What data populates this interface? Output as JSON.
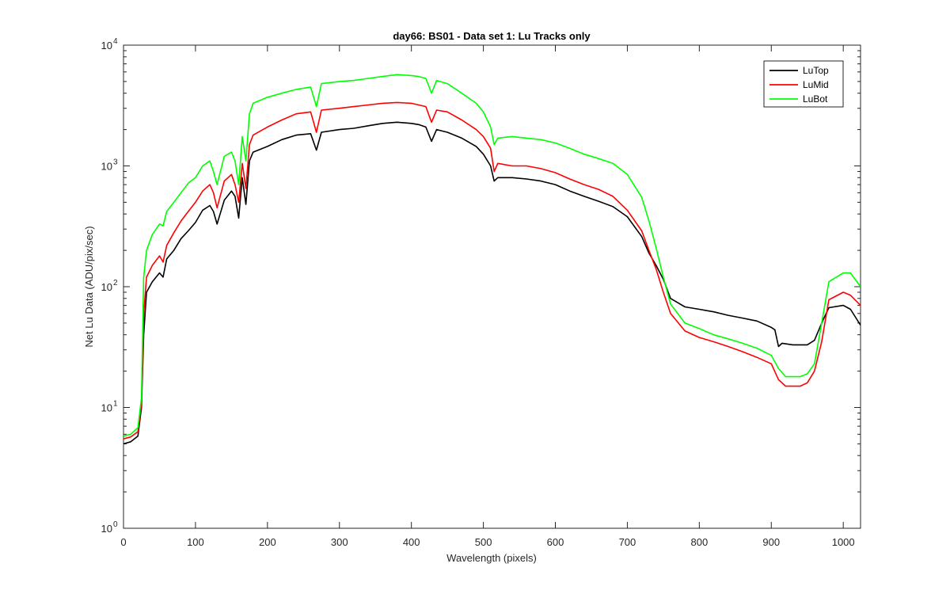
{
  "chart_data": {
    "type": "line",
    "title": "day66: BS01 - Data set 1: Lu Tracks only",
    "xlabel": "Wavelength (pixels)",
    "ylabel": "Net Lu Data (ADU/pix/sec)",
    "xlim": [
      0,
      1024
    ],
    "ylim": [
      1,
      10000
    ],
    "yscale": "log",
    "xticks": [
      0,
      100,
      200,
      300,
      400,
      500,
      600,
      700,
      800,
      900,
      1000
    ],
    "xtick_labels": [
      "0",
      "100",
      "200",
      "300",
      "400",
      "500",
      "600",
      "700",
      "800",
      "900",
      "1000"
    ],
    "yticks": [
      1,
      10,
      100,
      1000,
      10000
    ],
    "ytick_base": "10",
    "ytick_exponents": [
      "0",
      "1",
      "2",
      "3",
      "4"
    ],
    "grid": false,
    "legend_position": "top-right",
    "series": [
      {
        "name": "LuTop",
        "color": "#000000",
        "points": [
          [
            0,
            5
          ],
          [
            10,
            5.2
          ],
          [
            20,
            5.8
          ],
          [
            25,
            10
          ],
          [
            28,
            40
          ],
          [
            32,
            90
          ],
          [
            40,
            110
          ],
          [
            50,
            130
          ],
          [
            55,
            120
          ],
          [
            60,
            170
          ],
          [
            70,
            200
          ],
          [
            80,
            250
          ],
          [
            90,
            290
          ],
          [
            100,
            340
          ],
          [
            110,
            430
          ],
          [
            120,
            470
          ],
          [
            125,
            420
          ],
          [
            130,
            330
          ],
          [
            140,
            520
          ],
          [
            150,
            620
          ],
          [
            155,
            560
          ],
          [
            160,
            370
          ],
          [
            165,
            800
          ],
          [
            170,
            480
          ],
          [
            175,
            1100
          ],
          [
            180,
            1300
          ],
          [
            200,
            1450
          ],
          [
            220,
            1650
          ],
          [
            240,
            1800
          ],
          [
            260,
            1850
          ],
          [
            268,
            1350
          ],
          [
            275,
            1900
          ],
          [
            300,
            2000
          ],
          [
            320,
            2050
          ],
          [
            340,
            2150
          ],
          [
            360,
            2250
          ],
          [
            380,
            2300
          ],
          [
            400,
            2250
          ],
          [
            410,
            2200
          ],
          [
            420,
            2100
          ],
          [
            428,
            1600
          ],
          [
            435,
            2000
          ],
          [
            450,
            1900
          ],
          [
            470,
            1700
          ],
          [
            490,
            1450
          ],
          [
            500,
            1250
          ],
          [
            510,
            1000
          ],
          [
            515,
            750
          ],
          [
            520,
            800
          ],
          [
            540,
            800
          ],
          [
            560,
            780
          ],
          [
            580,
            750
          ],
          [
            600,
            700
          ],
          [
            620,
            620
          ],
          [
            640,
            560
          ],
          [
            660,
            510
          ],
          [
            680,
            460
          ],
          [
            700,
            380
          ],
          [
            720,
            260
          ],
          [
            730,
            190
          ],
          [
            740,
            150
          ],
          [
            750,
            115
          ],
          [
            760,
            80
          ],
          [
            780,
            68
          ],
          [
            800,
            65
          ],
          [
            820,
            62
          ],
          [
            840,
            58
          ],
          [
            860,
            55
          ],
          [
            880,
            52
          ],
          [
            900,
            46
          ],
          [
            905,
            44
          ],
          [
            910,
            32
          ],
          [
            915,
            34
          ],
          [
            930,
            33
          ],
          [
            950,
            33
          ],
          [
            960,
            36
          ],
          [
            970,
            50
          ],
          [
            980,
            67
          ],
          [
            1000,
            70
          ],
          [
            1010,
            65
          ],
          [
            1024,
            48
          ]
        ]
      },
      {
        "name": "LuMid",
        "color": "#ff0000",
        "points": [
          [
            0,
            5.5
          ],
          [
            10,
            5.7
          ],
          [
            20,
            6.3
          ],
          [
            25,
            11
          ],
          [
            28,
            60
          ],
          [
            32,
            120
          ],
          [
            40,
            150
          ],
          [
            50,
            180
          ],
          [
            55,
            160
          ],
          [
            60,
            220
          ],
          [
            70,
            280
          ],
          [
            80,
            350
          ],
          [
            90,
            420
          ],
          [
            100,
            500
          ],
          [
            110,
            620
          ],
          [
            120,
            700
          ],
          [
            125,
            600
          ],
          [
            130,
            450
          ],
          [
            140,
            750
          ],
          [
            150,
            850
          ],
          [
            155,
            700
          ],
          [
            160,
            500
          ],
          [
            165,
            1050
          ],
          [
            170,
            650
          ],
          [
            175,
            1500
          ],
          [
            180,
            1800
          ],
          [
            200,
            2100
          ],
          [
            220,
            2400
          ],
          [
            240,
            2700
          ],
          [
            260,
            2800
          ],
          [
            268,
            1900
          ],
          [
            275,
            2900
          ],
          [
            300,
            3000
          ],
          [
            320,
            3100
          ],
          [
            340,
            3200
          ],
          [
            360,
            3300
          ],
          [
            380,
            3350
          ],
          [
            400,
            3300
          ],
          [
            410,
            3200
          ],
          [
            420,
            3100
          ],
          [
            428,
            2300
          ],
          [
            435,
            2900
          ],
          [
            450,
            2800
          ],
          [
            470,
            2400
          ],
          [
            490,
            2000
          ],
          [
            500,
            1750
          ],
          [
            510,
            1400
          ],
          [
            515,
            900
          ],
          [
            520,
            1050
          ],
          [
            540,
            1000
          ],
          [
            560,
            1000
          ],
          [
            580,
            950
          ],
          [
            600,
            880
          ],
          [
            620,
            780
          ],
          [
            640,
            700
          ],
          [
            660,
            640
          ],
          [
            680,
            560
          ],
          [
            700,
            430
          ],
          [
            720,
            290
          ],
          [
            730,
            200
          ],
          [
            740,
            140
          ],
          [
            750,
            90
          ],
          [
            760,
            60
          ],
          [
            780,
            43
          ],
          [
            800,
            38
          ],
          [
            820,
            35
          ],
          [
            840,
            32
          ],
          [
            860,
            29
          ],
          [
            880,
            26
          ],
          [
            900,
            23
          ],
          [
            910,
            17
          ],
          [
            920,
            15
          ],
          [
            940,
            15
          ],
          [
            950,
            16
          ],
          [
            960,
            20
          ],
          [
            970,
            35
          ],
          [
            980,
            78
          ],
          [
            1000,
            90
          ],
          [
            1010,
            85
          ],
          [
            1024,
            70
          ]
        ]
      },
      {
        "name": "LuBot",
        "color": "#00ff00",
        "points": [
          [
            0,
            5.8
          ],
          [
            10,
            6
          ],
          [
            20,
            6.8
          ],
          [
            25,
            12
          ],
          [
            28,
            120
          ],
          [
            32,
            200
          ],
          [
            40,
            270
          ],
          [
            50,
            330
          ],
          [
            55,
            320
          ],
          [
            60,
            420
          ],
          [
            70,
            500
          ],
          [
            80,
            600
          ],
          [
            90,
            720
          ],
          [
            100,
            800
          ],
          [
            110,
            1000
          ],
          [
            120,
            1100
          ],
          [
            125,
            900
          ],
          [
            130,
            700
          ],
          [
            140,
            1200
          ],
          [
            150,
            1300
          ],
          [
            155,
            1100
          ],
          [
            160,
            700
          ],
          [
            165,
            1750
          ],
          [
            170,
            1100
          ],
          [
            175,
            2700
          ],
          [
            180,
            3300
          ],
          [
            200,
            3700
          ],
          [
            220,
            4000
          ],
          [
            240,
            4300
          ],
          [
            260,
            4500
          ],
          [
            268,
            3100
          ],
          [
            275,
            4800
          ],
          [
            300,
            5000
          ],
          [
            320,
            5100
          ],
          [
            340,
            5300
          ],
          [
            360,
            5500
          ],
          [
            380,
            5700
          ],
          [
            400,
            5600
          ],
          [
            410,
            5500
          ],
          [
            420,
            5300
          ],
          [
            428,
            4000
          ],
          [
            435,
            5100
          ],
          [
            450,
            4800
          ],
          [
            470,
            4000
          ],
          [
            490,
            3300
          ],
          [
            500,
            2800
          ],
          [
            510,
            2100
          ],
          [
            515,
            1500
          ],
          [
            520,
            1700
          ],
          [
            540,
            1750
          ],
          [
            560,
            1700
          ],
          [
            580,
            1650
          ],
          [
            600,
            1550
          ],
          [
            620,
            1400
          ],
          [
            640,
            1250
          ],
          [
            660,
            1150
          ],
          [
            680,
            1050
          ],
          [
            700,
            850
          ],
          [
            720,
            550
          ],
          [
            730,
            350
          ],
          [
            740,
            210
          ],
          [
            750,
            120
          ],
          [
            760,
            72
          ],
          [
            780,
            50
          ],
          [
            800,
            45
          ],
          [
            820,
            40
          ],
          [
            840,
            37
          ],
          [
            860,
            34
          ],
          [
            880,
            31
          ],
          [
            900,
            27
          ],
          [
            910,
            21
          ],
          [
            920,
            18
          ],
          [
            940,
            18
          ],
          [
            950,
            19
          ],
          [
            960,
            23
          ],
          [
            970,
            50
          ],
          [
            980,
            110
          ],
          [
            1000,
            130
          ],
          [
            1010,
            130
          ],
          [
            1024,
            100
          ]
        ]
      }
    ]
  }
}
